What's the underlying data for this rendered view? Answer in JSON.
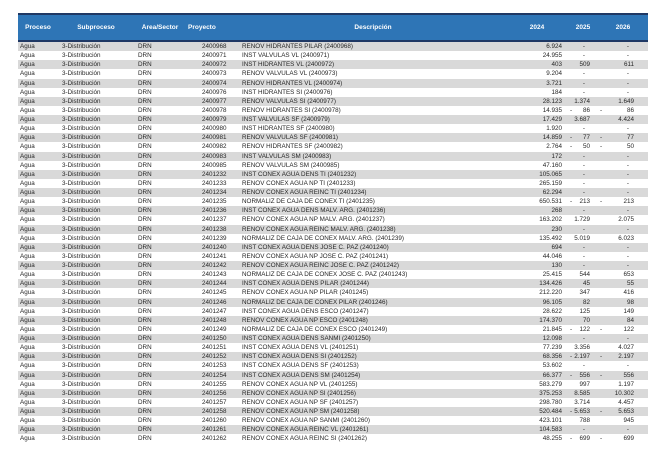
{
  "colors": {
    "header_bg": "#2E75B6",
    "header_border": "#1F3864",
    "row_stripe": "#D9D9D9",
    "header_text": "#FFFFFF",
    "body_text": "#262626"
  },
  "table": {
    "columns": [
      {
        "key": "proceso",
        "label": "Proceso"
      },
      {
        "key": "subproceso",
        "label": "Subproceso"
      },
      {
        "key": "area",
        "label": "Área/Sector"
      },
      {
        "key": "proyecto",
        "label": "Proyecto"
      },
      {
        "key": "descripcion",
        "label": "Descripción"
      },
      {
        "key": "y2024",
        "label": "2024"
      },
      {
        "key": "y2025",
        "label": "2025"
      },
      {
        "key": "y2026",
        "label": "2026"
      }
    ],
    "rows": [
      {
        "proceso": "Agua",
        "subproceso": "3-Distribución",
        "area": "DRN",
        "proyecto": "2400968",
        "descripcion": "RENOV HIDRANTES PILAR (2400968)",
        "y2024": "6.924",
        "y2025": "-",
        "y2026": "-"
      },
      {
        "proceso": "Agua",
        "subproceso": "3-Distribución",
        "area": "DRN",
        "proyecto": "2400971",
        "descripcion": "INST VALVULAS VL (2400971)",
        "y2024": "24.955",
        "y2025": "-",
        "y2026": "-"
      },
      {
        "proceso": "Agua",
        "subproceso": "3-Distribución",
        "area": "DRN",
        "proyecto": "2400972",
        "descripcion": "INST HIDRANTES VL (2400972)",
        "y2024": "403",
        "y2025": "509",
        "y2026": "611"
      },
      {
        "proceso": "Agua",
        "subproceso": "3-Distribución",
        "area": "DRN",
        "proyecto": "2400973",
        "descripcion": "RENOV VALVULAS VL (2400973)",
        "y2024": "9.204",
        "y2025": "-",
        "y2026": "-"
      },
      {
        "proceso": "Agua",
        "subproceso": "3-Distribución",
        "area": "DRN",
        "proyecto": "2400974",
        "descripcion": "RENOV HIDRANTES VL (2400974)",
        "y2024": "3.721",
        "y2025": "-",
        "y2026": "-"
      },
      {
        "proceso": "Agua",
        "subproceso": "3-Distribución",
        "area": "DRN",
        "proyecto": "2400976",
        "descripcion": "INST HIDRANTES SI (2400976)",
        "y2024": "184",
        "y2025": "-",
        "y2026": "-"
      },
      {
        "proceso": "Agua",
        "subproceso": "3-Distribución",
        "area": "DRN",
        "proyecto": "2400977",
        "descripcion": "RENOV VALVULAS SI (2400977)",
        "y2024": "28.123",
        "y2025": "1.374",
        "y2026": "1.649"
      },
      {
        "proceso": "Agua",
        "subproceso": "3-Distribución",
        "area": "DRN",
        "proyecto": "2400978",
        "descripcion": "RENOV HIDRANTES SI (2400978)",
        "y2024": "14.935",
        "y2025": "-86",
        "y2026": "-86"
      },
      {
        "proceso": "Agua",
        "subproceso": "3-Distribución",
        "area": "DRN",
        "proyecto": "2400979",
        "descripcion": "INST VALVULAS SF (2400979)",
        "y2024": "17.429",
        "y2025": "3.687",
        "y2026": "4.424"
      },
      {
        "proceso": "Agua",
        "subproceso": "3-Distribución",
        "area": "DRN",
        "proyecto": "2400980",
        "descripcion": "INST HIDRANTES SF (2400980)",
        "y2024": "1.920",
        "y2025": "-",
        "y2026": "-"
      },
      {
        "proceso": "Agua",
        "subproceso": "3-Distribución",
        "area": "DRN",
        "proyecto": "2400981",
        "descripcion": "RENOV VALVULAS SF (2400981)",
        "y2024": "14.859",
        "y2025": "-77",
        "y2026": "-77"
      },
      {
        "proceso": "Agua",
        "subproceso": "3-Distribución",
        "area": "DRN",
        "proyecto": "2400982",
        "descripcion": "RENOV HIDRANTES SF (2400982)",
        "y2024": "2.764",
        "y2025": "-50",
        "y2026": "-50"
      },
      {
        "proceso": "Agua",
        "subproceso": "3-Distribución",
        "area": "DRN",
        "proyecto": "2400983",
        "descripcion": "INST VALVULAS SM (2400983)",
        "y2024": "172",
        "y2025": "-",
        "y2026": "-"
      },
      {
        "proceso": "Agua",
        "subproceso": "3-Distribución",
        "area": "DRN",
        "proyecto": "2400985",
        "descripcion": "RENOV VALVULAS SM (2400985)",
        "y2024": "47.160",
        "y2025": "-",
        "y2026": "-"
      },
      {
        "proceso": "Agua",
        "subproceso": "3-Distribución",
        "area": "DRN",
        "proyecto": "2401232",
        "descripcion": "INST CONEX AGUA DENS TI (2401232)",
        "y2024": "105.065",
        "y2025": "-",
        "y2026": "-"
      },
      {
        "proceso": "Agua",
        "subproceso": "3-Distribución",
        "area": "DRN",
        "proyecto": "2401233",
        "descripcion": "RENOV CONEX AGUA NP TI (2401233)",
        "y2024": "265.159",
        "y2025": "-",
        "y2026": "-"
      },
      {
        "proceso": "Agua",
        "subproceso": "3-Distribución",
        "area": "DRN",
        "proyecto": "2401234",
        "descripcion": "RENOV CONEX AGUA REINC TI (2401234)",
        "y2024": "62.294",
        "y2025": "-",
        "y2026": "-"
      },
      {
        "proceso": "Agua",
        "subproceso": "3-Distribución",
        "area": "DRN",
        "proyecto": "2401235",
        "descripcion": "NORMALIZ DE CAJA DE CONEX TI (2401235)",
        "y2024": "650.531",
        "y2025": "-213",
        "y2026": "-213"
      },
      {
        "proceso": "Agua",
        "subproceso": "3-Distribución",
        "area": "DRN",
        "proyecto": "2401236",
        "descripcion": "INST CONEX AGUA DENS MALV. ARG. (2401236)",
        "y2024": "268",
        "y2025": "-",
        "y2026": "-"
      },
      {
        "proceso": "Agua",
        "subproceso": "3-Distribución",
        "area": "DRN",
        "proyecto": "2401237",
        "descripcion": "RENOV CONEX AGUA NP MALV. ARG. (2401237)",
        "y2024": "163.202",
        "y2025": "1.729",
        "y2026": "2.075"
      },
      {
        "proceso": "Agua",
        "subproceso": "3-Distribución",
        "area": "DRN",
        "proyecto": "2401238",
        "descripcion": "RENOV CONEX AGUA REINC MALV. ARG. (2401238)",
        "y2024": "230",
        "y2025": "-",
        "y2026": "-"
      },
      {
        "proceso": "Agua",
        "subproceso": "3-Distribución",
        "area": "DRN",
        "proyecto": "2401239",
        "descripcion": "NORMALIZ DE CAJA DE CONEX MALV. ARG. (2401239)",
        "y2024": "135.492",
        "y2025": "5.019",
        "y2026": "6.023"
      },
      {
        "proceso": "Agua",
        "subproceso": "3-Distribución",
        "area": "DRN",
        "proyecto": "2401240",
        "descripcion": "INST CONEX AGUA DENS JOSE C. PAZ (2401240)",
        "y2024": "694",
        "y2025": "-",
        "y2026": "-"
      },
      {
        "proceso": "Agua",
        "subproceso": "3-Distribución",
        "area": "DRN",
        "proyecto": "2401241",
        "descripcion": "RENOV CONEX AGUA NP JOSE C. PAZ (2401241)",
        "y2024": "44.046",
        "y2025": "-",
        "y2026": "-"
      },
      {
        "proceso": "Agua",
        "subproceso": "3-Distribución",
        "area": "DRN",
        "proyecto": "2401242",
        "descripcion": "RENOV CONEX AGUA REINC JOSE C. PAZ (2401242)",
        "y2024": "130",
        "y2025": "-",
        "y2026": "-"
      },
      {
        "proceso": "Agua",
        "subproceso": "3-Distribución",
        "area": "DRN",
        "proyecto": "2401243",
        "descripcion": "NORMALIZ DE CAJA DE CONEX JOSE C. PAZ (2401243)",
        "y2024": "25.415",
        "y2025": "544",
        "y2026": "653"
      },
      {
        "proceso": "Agua",
        "subproceso": "3-Distribución",
        "area": "DRN",
        "proyecto": "2401244",
        "descripcion": "INST CONEX AGUA DENS PILAR (2401244)",
        "y2024": "134.426",
        "y2025": "45",
        "y2026": "55"
      },
      {
        "proceso": "Agua",
        "subproceso": "3-Distribución",
        "area": "DRN",
        "proyecto": "2401245",
        "descripcion": "RENOV CONEX AGUA NP PILAR (2401245)",
        "y2024": "212.220",
        "y2025": "347",
        "y2026": "416"
      },
      {
        "proceso": "Agua",
        "subproceso": "3-Distribución",
        "area": "DRN",
        "proyecto": "2401246",
        "descripcion": "NORMALIZ DE CAJA DE CONEX PILAR (2401246)",
        "y2024": "96.105",
        "y2025": "82",
        "y2026": "98"
      },
      {
        "proceso": "Agua",
        "subproceso": "3-Distribución",
        "area": "DRN",
        "proyecto": "2401247",
        "descripcion": "INST CONEX AGUA DENS ESCO (2401247)",
        "y2024": "28.622",
        "y2025": "125",
        "y2026": "149"
      },
      {
        "proceso": "Agua",
        "subproceso": "3-Distribución",
        "area": "DRN",
        "proyecto": "2401248",
        "descripcion": "RENOV CONEX AGUA NP ESCO (2401248)",
        "y2024": "174.370",
        "y2025": "70",
        "y2026": "84"
      },
      {
        "proceso": "Agua",
        "subproceso": "3-Distribución",
        "area": "DRN",
        "proyecto": "2401249",
        "descripcion": "NORMALIZ DE CAJA DE CONEX ESCO (2401249)",
        "y2024": "21.845",
        "y2025": "-122",
        "y2026": "-122"
      },
      {
        "proceso": "Agua",
        "subproceso": "3-Distribución",
        "area": "DRN",
        "proyecto": "2401250",
        "descripcion": "INST CONEX AGUA DENS SANMI (2401250)",
        "y2024": "12.098",
        "y2025": "-",
        "y2026": "-"
      },
      {
        "proceso": "Agua",
        "subproceso": "3-Distribución",
        "area": "DRN",
        "proyecto": "2401251",
        "descripcion": "INST CONEX AGUA DENS VL (2401251)",
        "y2024": "77.239",
        "y2025": "3.356",
        "y2026": "4.027"
      },
      {
        "proceso": "Agua",
        "subproceso": "3-Distribución",
        "area": "DRN",
        "proyecto": "2401252",
        "descripcion": "INST CONEX AGUA DENS SI (2401252)",
        "y2024": "68.356",
        "y2025": "-2.197",
        "y2026": "-2.197"
      },
      {
        "proceso": "Agua",
        "subproceso": "3-Distribución",
        "area": "DRN",
        "proyecto": "2401253",
        "descripcion": "INST CONEX AGUA DENS SF (2401253)",
        "y2024": "53.602",
        "y2025": "-",
        "y2026": "-"
      },
      {
        "proceso": "Agua",
        "subproceso": "3-Distribución",
        "area": "DRN",
        "proyecto": "2401254",
        "descripcion": "INST CONEX AGUA DENS SM (2401254)",
        "y2024": "66.377",
        "y2025": "-556",
        "y2026": "-556"
      },
      {
        "proceso": "Agua",
        "subproceso": "3-Distribución",
        "area": "DRN",
        "proyecto": "2401255",
        "descripcion": "RENOV CONEX AGUA NP VL (2401255)",
        "y2024": "583.279",
        "y2025": "997",
        "y2026": "1.197"
      },
      {
        "proceso": "Agua",
        "subproceso": "3-Distribución",
        "area": "DRN",
        "proyecto": "2401256",
        "descripcion": "RENOV CONEX AGUA NP SI (2401256)",
        "y2024": "375.253",
        "y2025": "8.585",
        "y2026": "10.302"
      },
      {
        "proceso": "Agua",
        "subproceso": "3-Distribución",
        "area": "DRN",
        "proyecto": "2401257",
        "descripcion": "RENOV CONEX AGUA NP SF (2401257)",
        "y2024": "298.780",
        "y2025": "3.714",
        "y2026": "4.457"
      },
      {
        "proceso": "Agua",
        "subproceso": "3-Distribución",
        "area": "DRN",
        "proyecto": "2401258",
        "descripcion": "RENOV CONEX AGUA NP SM (2401258)",
        "y2024": "520.484",
        "y2025": "-5.653",
        "y2026": "-5.653"
      },
      {
        "proceso": "Agua",
        "subproceso": "3-Distribución",
        "area": "DRN",
        "proyecto": "2401260",
        "descripcion": "RENOV CONEX AGUA NP SANMI (2401260)",
        "y2024": "423.101",
        "y2025": "788",
        "y2026": "945"
      },
      {
        "proceso": "Agua",
        "subproceso": "3-Distribución",
        "area": "DRN",
        "proyecto": "2401261",
        "descripcion": "RENOV CONEX AGUA REINC VL (2401261)",
        "y2024": "104.583",
        "y2025": "-",
        "y2026": "-"
      },
      {
        "proceso": "Agua",
        "subproceso": "3-Distribución",
        "area": "DRN",
        "proyecto": "2401262",
        "descripcion": "RENOV CONEX AGUA REINC SI (2401262)",
        "y2024": "48.255",
        "y2025": "-699",
        "y2026": "-699"
      }
    ]
  }
}
